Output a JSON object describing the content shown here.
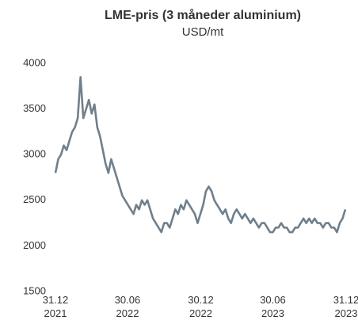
{
  "chart_data": {
    "type": "line",
    "title": "LME-pris (3 måneder aluminium)",
    "subtitle": "USD/mt",
    "x": [
      "2021-12-31",
      "2022-01-07",
      "2022-01-14",
      "2022-01-21",
      "2022-01-28",
      "2022-02-04",
      "2022-02-11",
      "2022-02-18",
      "2022-02-25",
      "2022-03-04",
      "2022-03-11",
      "2022-03-18",
      "2022-03-25",
      "2022-04-01",
      "2022-04-08",
      "2022-04-15",
      "2022-04-22",
      "2022-04-29",
      "2022-05-06",
      "2022-05-13",
      "2022-05-20",
      "2022-05-27",
      "2022-06-03",
      "2022-06-10",
      "2022-06-17",
      "2022-06-24",
      "2022-07-01",
      "2022-07-08",
      "2022-07-15",
      "2022-07-22",
      "2022-07-29",
      "2022-08-05",
      "2022-08-12",
      "2022-08-19",
      "2022-08-26",
      "2022-09-02",
      "2022-09-09",
      "2022-09-16",
      "2022-09-23",
      "2022-09-30",
      "2022-10-07",
      "2022-10-14",
      "2022-10-21",
      "2022-10-28",
      "2022-11-04",
      "2022-11-11",
      "2022-11-18",
      "2022-11-25",
      "2022-12-02",
      "2022-12-09",
      "2022-12-16",
      "2022-12-23",
      "2022-12-30",
      "2023-01-06",
      "2023-01-13",
      "2023-01-20",
      "2023-01-27",
      "2023-02-03",
      "2023-02-10",
      "2023-02-17",
      "2023-02-24",
      "2023-03-03",
      "2023-03-10",
      "2023-03-17",
      "2023-03-24",
      "2023-03-31",
      "2023-04-07",
      "2023-04-14",
      "2023-04-21",
      "2023-04-28",
      "2023-05-05",
      "2023-05-12",
      "2023-05-19",
      "2023-05-26",
      "2023-06-02",
      "2023-06-09",
      "2023-06-16",
      "2023-06-23",
      "2023-06-30",
      "2023-07-07",
      "2023-07-14",
      "2023-07-21",
      "2023-07-28",
      "2023-08-04",
      "2023-08-11",
      "2023-08-18",
      "2023-08-25",
      "2023-09-01",
      "2023-09-08",
      "2023-09-15",
      "2023-09-22",
      "2023-09-29",
      "2023-10-06",
      "2023-10-13",
      "2023-10-20",
      "2023-10-27",
      "2023-11-03",
      "2023-11-10",
      "2023-11-17",
      "2023-11-24",
      "2023-12-01",
      "2023-12-08",
      "2023-12-15",
      "2023-12-22",
      "2023-12-29"
    ],
    "series": [
      {
        "color": "#6f7f8c",
        "values": [
          2800,
          2950,
          3000,
          3100,
          3050,
          3150,
          3250,
          3300,
          3400,
          3850,
          3400,
          3500,
          3600,
          3450,
          3550,
          3300,
          3200,
          3050,
          2900,
          2800,
          2950,
          2850,
          2750,
          2650,
          2550,
          2500,
          2450,
          2400,
          2350,
          2450,
          2400,
          2500,
          2450,
          2500,
          2400,
          2300,
          2250,
          2200,
          2150,
          2250,
          2250,
          2200,
          2300,
          2400,
          2350,
          2450,
          2400,
          2500,
          2450,
          2400,
          2350,
          2250,
          2350,
          2450,
          2600,
          2650,
          2600,
          2500,
          2450,
          2400,
          2350,
          2400,
          2300,
          2250,
          2350,
          2400,
          2350,
          2300,
          2350,
          2300,
          2250,
          2300,
          2250,
          2200,
          2250,
          2250,
          2200,
          2150,
          2150,
          2200,
          2200,
          2250,
          2200,
          2200,
          2150,
          2150,
          2200,
          2200,
          2250,
          2300,
          2250,
          2300,
          2250,
          2300,
          2250,
          2250,
          2200,
          2250,
          2250,
          2200,
          2200,
          2150,
          2250,
          2300,
          2400
        ]
      }
    ],
    "xlim": [
      "2021-12-31",
      "2023-12-31"
    ],
    "xticks": [
      {
        "value": "2021-12-31",
        "label": "31.12\n2021"
      },
      {
        "value": "2022-06-30",
        "label": "30.06\n2022"
      },
      {
        "value": "2022-12-31",
        "label": "30.12\n2022"
      },
      {
        "value": "2023-06-30",
        "label": "30.06\n2023"
      },
      {
        "value": "2023-12-31",
        "label": "31.12\n2023"
      }
    ],
    "ylim": [
      1500,
      4000
    ],
    "yticks": [
      1500,
      2000,
      2500,
      3000,
      3500,
      4000
    ],
    "grid": false
  }
}
